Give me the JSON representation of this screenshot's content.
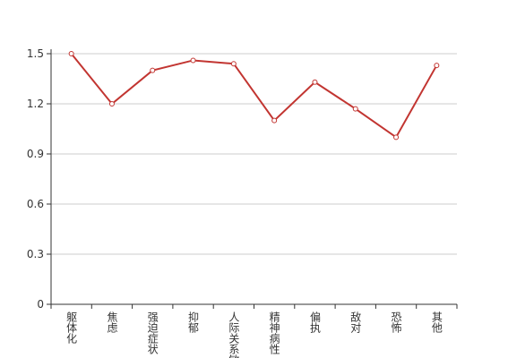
{
  "chart_data": {
    "type": "line",
    "categories": [
      "躯体化",
      "焦虑",
      "强迫症状",
      "抑郁",
      "人际关系敏感",
      "精神病性",
      "偏执",
      "敌对",
      "恐怖",
      "其他"
    ],
    "values": [
      1.5,
      1.2,
      1.4,
      1.46,
      1.44,
      1.1,
      1.33,
      1.17,
      1.0,
      1.43
    ],
    "color": "#c23531",
    "ylim": [
      0,
      1.5
    ],
    "yticks": [
      0,
      0.3,
      0.6,
      0.9,
      1.2,
      1.5
    ],
    "grid": true
  }
}
